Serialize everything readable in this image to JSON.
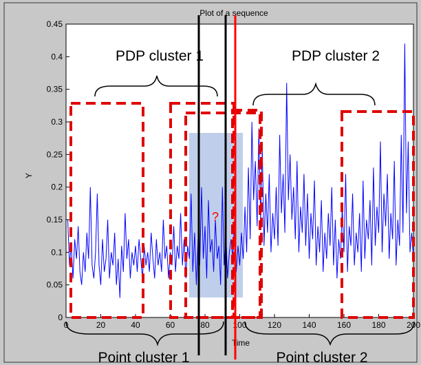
{
  "chart_data": {
    "type": "line",
    "title": "Plot of a sequence",
    "xlabel": "Time",
    "ylabel": "Y",
    "xlim": [
      0,
      200
    ],
    "ylim": [
      0,
      0.45
    ],
    "xticks": [
      0,
      20,
      40,
      60,
      80,
      100,
      120,
      140,
      160,
      180,
      200
    ],
    "yticks": [
      0,
      0.05,
      0.1,
      0.15,
      0.2,
      0.25,
      0.3,
      0.35,
      0.4,
      0.45
    ],
    "grid": false,
    "series": [
      {
        "color": "#0000ff",
        "x": [
          1,
          2,
          3,
          4,
          5,
          6,
          7,
          8,
          9,
          10,
          11,
          12,
          13,
          14,
          15,
          16,
          17,
          18,
          19,
          20,
          21,
          22,
          23,
          24,
          25,
          26,
          27,
          28,
          29,
          30,
          31,
          32,
          33,
          34,
          35,
          36,
          37,
          38,
          39,
          40,
          41,
          42,
          43,
          44,
          45,
          46,
          47,
          48,
          49,
          50,
          51,
          52,
          53,
          54,
          55,
          56,
          57,
          58,
          59,
          60,
          61,
          62,
          63,
          64,
          65,
          66,
          67,
          68,
          69,
          70,
          71,
          72,
          73,
          74,
          75,
          76,
          77,
          78,
          79,
          80,
          81,
          82,
          83,
          84,
          85,
          86,
          87,
          88,
          89,
          90,
          91,
          92,
          93,
          94,
          95,
          96,
          97,
          98,
          99,
          100,
          101,
          102,
          103,
          104,
          105,
          106,
          107,
          108,
          109,
          110,
          111,
          112,
          113,
          114,
          115,
          116,
          117,
          118,
          119,
          120,
          121,
          122,
          123,
          124,
          125,
          126,
          127,
          128,
          129,
          130,
          131,
          132,
          133,
          134,
          135,
          136,
          137,
          138,
          139,
          140,
          141,
          142,
          143,
          144,
          145,
          146,
          147,
          148,
          149,
          150,
          151,
          152,
          153,
          154,
          155,
          156,
          157,
          158,
          159,
          160,
          161,
          162,
          163,
          164,
          165,
          166,
          167,
          168,
          169,
          170,
          171,
          172,
          173,
          174,
          175,
          176,
          177,
          178,
          179,
          180,
          181,
          182,
          183,
          184,
          185,
          186,
          187,
          188,
          189,
          190,
          191,
          192,
          193,
          194,
          195,
          196,
          197,
          198,
          199,
          200
        ],
        "values": [
          0.15,
          0.08,
          0.11,
          0.06,
          0.12,
          0.09,
          0.14,
          0.07,
          0.05,
          0.1,
          0.07,
          0.13,
          0.09,
          0.2,
          0.08,
          0.06,
          0.1,
          0.19,
          0.08,
          0.05,
          0.12,
          0.07,
          0.09,
          0.15,
          0.06,
          0.1,
          0.08,
          0.13,
          0.05,
          0.09,
          0.03,
          0.11,
          0.07,
          0.16,
          0.09,
          0.12,
          0.06,
          0.1,
          0.08,
          0.11,
          0.07,
          0.12,
          0.09,
          0.06,
          0.11,
          0.08,
          0.1,
          0.07,
          0.13,
          0.09,
          0.06,
          0.12,
          0.08,
          0.1,
          0.07,
          0.15,
          0.09,
          0.11,
          0.06,
          0.1,
          0.08,
          0.14,
          0.07,
          0.11,
          0.09,
          0.16,
          0.08,
          0.12,
          0.06,
          0.11,
          0.09,
          0.19,
          0.07,
          0.13,
          0.05,
          0.12,
          0.08,
          0.2,
          0.09,
          0.14,
          0.06,
          0.18,
          0.1,
          0.12,
          0.07,
          0.15,
          0.09,
          0.11,
          0.05,
          0.2,
          0.08,
          0.13,
          0.06,
          0.1,
          0.12,
          0.09,
          0.15,
          0.07,
          0.11,
          0.08,
          0.13,
          0.09,
          0.17,
          0.1,
          0.23,
          0.12,
          0.3,
          0.18,
          0.24,
          0.14,
          0.29,
          0.15,
          0.26,
          0.11,
          0.19,
          0.13,
          0.22,
          0.1,
          0.16,
          0.12,
          0.2,
          0.11,
          0.28,
          0.16,
          0.22,
          0.13,
          0.36,
          0.18,
          0.25,
          0.15,
          0.2,
          0.12,
          0.24,
          0.1,
          0.17,
          0.13,
          0.22,
          0.11,
          0.19,
          0.09,
          0.16,
          0.12,
          0.21,
          0.08,
          0.14,
          0.1,
          0.18,
          0.07,
          0.13,
          0.09,
          0.16,
          0.11,
          0.2,
          0.08,
          0.15,
          0.06,
          0.12,
          0.09,
          0.17,
          0.1,
          0.22,
          0.07,
          0.14,
          0.11,
          0.19,
          0.08,
          0.13,
          0.1,
          0.16,
          0.07,
          0.21,
          0.09,
          0.15,
          0.12,
          0.18,
          0.08,
          0.23,
          0.11,
          0.17,
          0.13,
          0.27,
          0.1,
          0.19,
          0.14,
          0.22,
          0.09,
          0.16,
          0.12,
          0.24,
          0.08,
          0.15,
          0.11,
          0.28,
          0.13,
          0.42,
          0.16,
          0.27,
          0.1,
          0.13,
          0.09
        ]
      }
    ]
  },
  "annotations": {
    "pdp_cluster_1": "PDP cluster 1",
    "pdp_cluster_2": "PDP cluster 2",
    "point_cluster_1": "Point cluster 1",
    "point_cluster_2": "Point cluster 2",
    "question_mark": "?"
  },
  "colors": {
    "series": "#0000ff",
    "dashed_box": "#e00000",
    "shaded_region": "#b4c7e7",
    "red_line": "#ff0000",
    "black_line": "#000000",
    "background": "#c8c8c8"
  }
}
